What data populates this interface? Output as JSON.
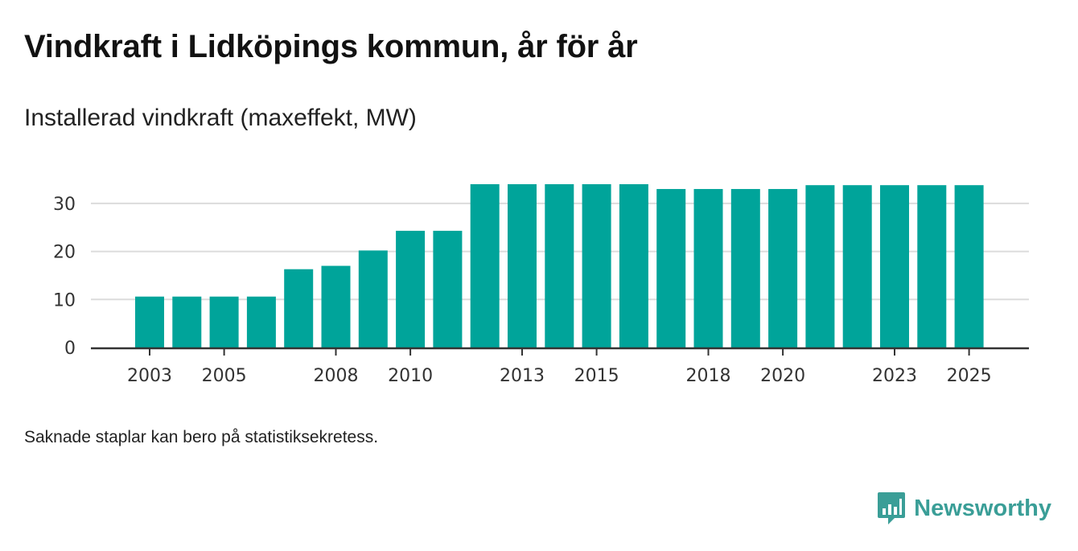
{
  "title": "Vindkraft i Lidköpings kommun, år för år",
  "subtitle": "Installerad vindkraft (maxeffekt, MW)",
  "footnote": "Saknade staplar kan bero på statistiksekretess.",
  "brand": {
    "name": "Newsworthy",
    "icon": "newsworthy-logo-icon"
  },
  "colors": {
    "bar": "#00a49a",
    "grid": "#dcdcdc",
    "axis": "#333333",
    "brand": "#3a9e97"
  },
  "chart_data": {
    "type": "bar",
    "title": "Vindkraft i Lidköpings kommun, år för år",
    "ylabel": "Installerad vindkraft (maxeffekt, MW)",
    "xlabel": "",
    "categories": [
      "2003",
      "2004",
      "2005",
      "2006",
      "2007",
      "2008",
      "2009",
      "2010",
      "2011",
      "2012",
      "2013",
      "2014",
      "2015",
      "2016",
      "2017",
      "2018",
      "2019",
      "2020",
      "2021",
      "2022",
      "2023",
      "2024",
      "2025"
    ],
    "values": [
      10.6,
      10.6,
      10.6,
      10.6,
      16.3,
      17.0,
      20.2,
      24.3,
      24.3,
      34.0,
      34.0,
      34.0,
      34.0,
      34.0,
      33.0,
      33.0,
      33.0,
      33.0,
      33.8,
      33.8,
      33.8,
      33.8,
      33.8
    ],
    "ylim": [
      0,
      34
    ],
    "yticks": [
      0,
      10,
      20,
      30
    ],
    "xtick_labels": [
      "2003",
      "2005",
      "2008",
      "2010",
      "2013",
      "2015",
      "2018",
      "2020",
      "2023",
      "2025"
    ],
    "grid": true
  }
}
